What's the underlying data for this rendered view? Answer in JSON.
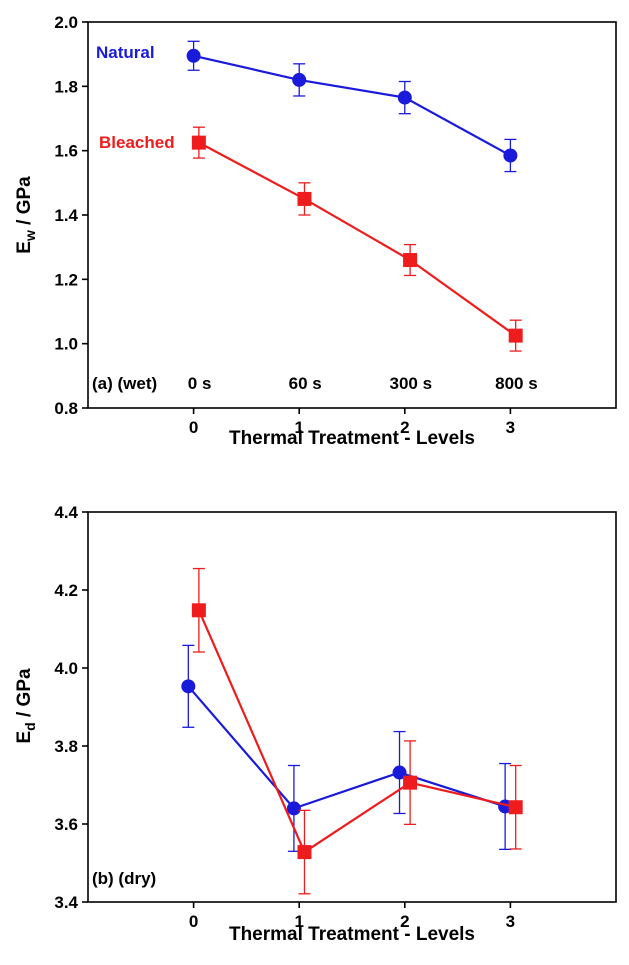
{
  "chart_data": [
    {
      "type": "line",
      "panel_label": "(a) (wet)",
      "xlabel": "Thermal Treatment - Levels",
      "ylabel_main": "E",
      "ylabel_sub": "w",
      "ylabel_rest": " / GPa",
      "xlim": [
        -1,
        4
      ],
      "ylim": [
        0.8,
        2.0
      ],
      "xticks": [
        "0",
        "1",
        "2",
        "3"
      ],
      "yticks": [
        "0.8",
        "1.0",
        "1.2",
        "1.4",
        "1.6",
        "1.8",
        "2.0"
      ],
      "level_labels": [
        "0 s",
        "60 s",
        "300 s",
        "800 s"
      ],
      "grid": false,
      "series": [
        {
          "name": "Natural",
          "color": "#1a1adb",
          "marker": "circle",
          "x": [
            0,
            1,
            2,
            3
          ],
          "y": [
            1.895,
            1.82,
            1.765,
            1.585
          ],
          "err": [
            0.045,
            0.05,
            0.05,
            0.05
          ]
        },
        {
          "name": "Bleached",
          "color": "#ee1c1c",
          "marker": "square",
          "x": [
            0.05,
            1.05,
            2.05,
            3.05
          ],
          "y": [
            1.625,
            1.45,
            1.26,
            1.025
          ],
          "err": [
            0.048,
            0.05,
            0.048,
            0.048
          ]
        }
      ]
    },
    {
      "type": "line",
      "panel_label": "(b) (dry)",
      "xlabel": "Thermal Treatment - Levels",
      "ylabel_main": "E",
      "ylabel_sub": "d",
      "ylabel_rest": " / GPa",
      "xlim": [
        -1,
        4
      ],
      "ylim": [
        3.4,
        4.4
      ],
      "xticks": [
        "0",
        "1",
        "2",
        "3"
      ],
      "yticks": [
        "3.4",
        "3.6",
        "3.8",
        "4.0",
        "4.2",
        "4.4"
      ],
      "grid": false,
      "series": [
        {
          "color": "#1a1adb",
          "marker": "circle",
          "x": [
            -0.05,
            0.95,
            1.95,
            2.95
          ],
          "y": [
            3.953,
            3.64,
            3.732,
            3.645
          ],
          "err": [
            0.105,
            0.11,
            0.105,
            0.11
          ]
        },
        {
          "color": "#ee1c1c",
          "marker": "square",
          "x": [
            0.05,
            1.05,
            2.05,
            3.05
          ],
          "y": [
            4.148,
            3.528,
            3.706,
            3.643
          ],
          "err": [
            0.107,
            0.107,
            0.107,
            0.107
          ]
        }
      ]
    }
  ]
}
